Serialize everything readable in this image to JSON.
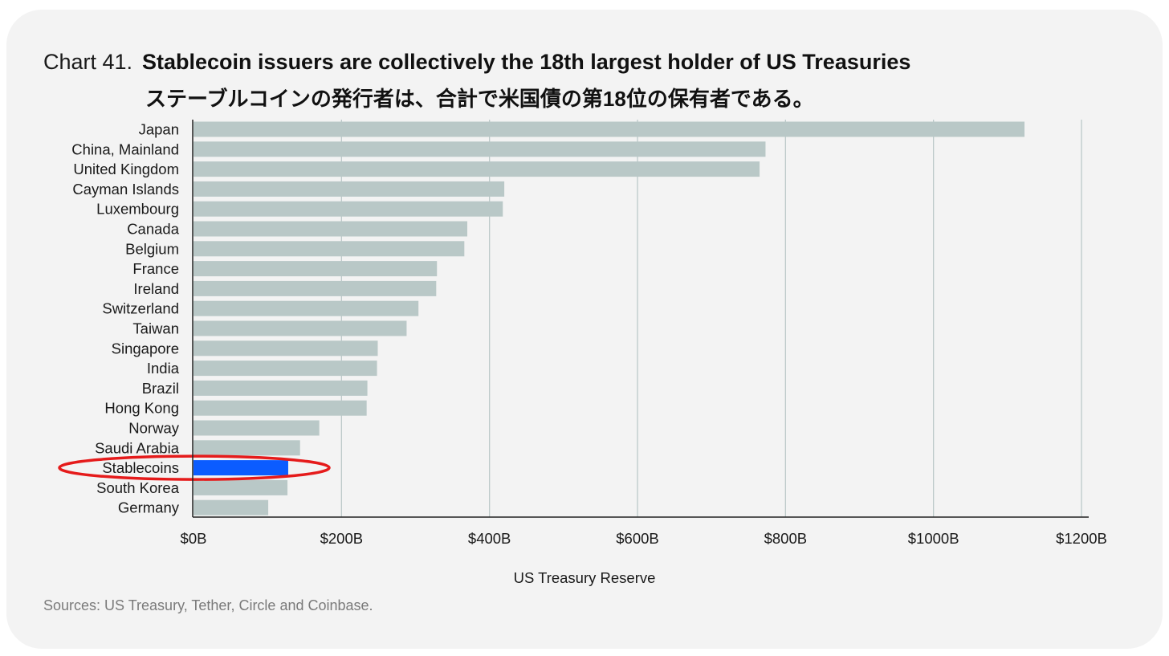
{
  "title": {
    "prefix": "Chart 41.",
    "main": "Stablecoin issuers are collectively the 18th largest holder of US Treasuries",
    "japanese": "ステーブルコインの発行者は、合計で米国債の第18位の保有者である。"
  },
  "source": "Sources: US Treasury, Tether, Circle and Coinbase.",
  "chart_data": {
    "type": "bar",
    "orientation": "horizontal",
    "xlabel": "US Treasury Reserve",
    "ylabel": "",
    "xlim": [
      0,
      1200
    ],
    "x_ticks": [
      0,
      200,
      400,
      600,
      800,
      1000,
      1200
    ],
    "x_tick_labels": [
      "$0B",
      "$200B",
      "$400B",
      "$600B",
      "$800B",
      "$1000B",
      "$1200B"
    ],
    "grid": "vertical",
    "categories": [
      "Japan",
      "China, Mainland",
      "United Kingdom",
      "Cayman Islands",
      "Luxembourg",
      "Canada",
      "Belgium",
      "France",
      "Ireland",
      "Switzerland",
      "Taiwan",
      "Singapore",
      "India",
      "Brazil",
      "Hong Kong",
      "Norway",
      "Saudi Arabia",
      "Stablecoins",
      "South Korea",
      "Germany"
    ],
    "values": [
      1123,
      773,
      765,
      420,
      418,
      370,
      366,
      329,
      328,
      304,
      288,
      249,
      248,
      235,
      234,
      170,
      144,
      128,
      127,
      101
    ],
    "highlight": "Stablecoins",
    "colors": {
      "bar": "#b9c8c7",
      "highlight_bar": "#0b5cff",
      "annotation_ellipse": "#e51b1b",
      "grid": "#bccaca",
      "axis": "#222222"
    }
  }
}
